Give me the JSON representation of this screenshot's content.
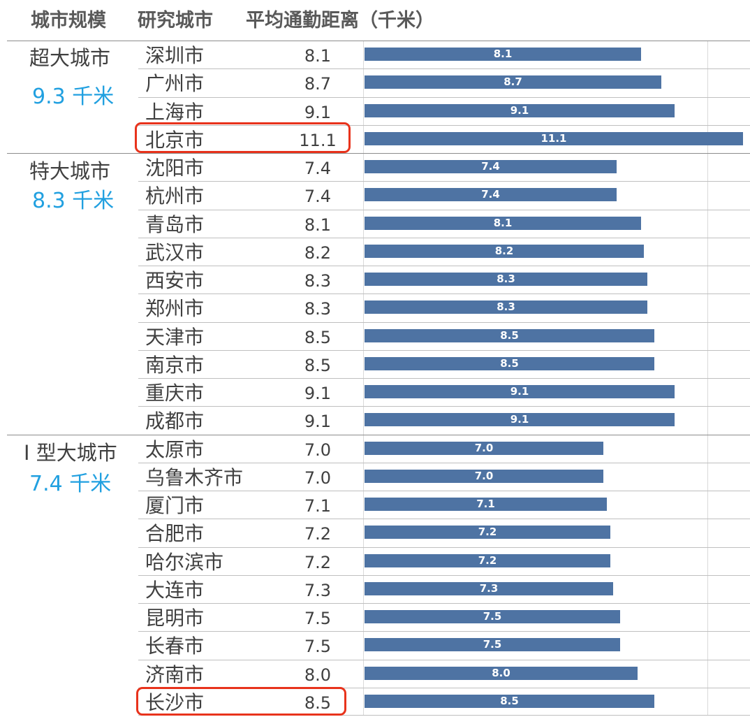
{
  "header": {
    "scale_label": "城市规模",
    "city_label": "研究城市",
    "distance_label": "平均通勤距离（千米）"
  },
  "colors": {
    "bar": "#4e73a3",
    "average_text": "#21a0e0",
    "highlight_box": "#e8331c"
  },
  "groups": [
    {
      "name": "超大城市",
      "average": "9.3 千米"
    },
    {
      "name": "特大城市",
      "average": "8.3 千米"
    },
    {
      "name": "I 型大城市",
      "average": "7.4 千米"
    }
  ],
  "highlighted_cities": [
    "北京市",
    "长沙市"
  ],
  "chart_data": {
    "type": "bar",
    "orientation": "horizontal",
    "title": "",
    "xlabel": "",
    "ylabel": "",
    "xlim": [
      0,
      11.1
    ],
    "grid": true,
    "data_labels": true,
    "series": [
      {
        "values": [
          8.1,
          8.7,
          9.1,
          11.1,
          7.4,
          7.4,
          8.1,
          8.2,
          8.3,
          8.3,
          8.5,
          8.5,
          9.1,
          9.1,
          7.0,
          7.0,
          7.1,
          7.2,
          7.2,
          7.3,
          7.5,
          7.5,
          8.0,
          8.5
        ]
      }
    ],
    "categories": [
      "深圳市",
      "广州市",
      "上海市",
      "北京市",
      "沈阳市",
      "杭州市",
      "青岛市",
      "武汉市",
      "西安市",
      "郑州市",
      "天津市",
      "南京市",
      "重庆市",
      "成都市",
      "太原市",
      "乌鲁木齐市",
      "厦门市",
      "合肥市",
      "哈尔滨市",
      "大连市",
      "昆明市",
      "长春市",
      "济南市",
      "长沙市"
    ],
    "value_text": [
      "8.1",
      "8.7",
      "9.1",
      "11.1",
      "7.4",
      "7.4",
      "8.1",
      "8.2",
      "8.3",
      "8.3",
      "8.5",
      "8.5",
      "9.1",
      "9.1",
      "7.0",
      "7.0",
      "7.1",
      "7.2",
      "7.2",
      "7.3",
      "7.5",
      "7.5",
      "8.0",
      "8.5"
    ]
  }
}
